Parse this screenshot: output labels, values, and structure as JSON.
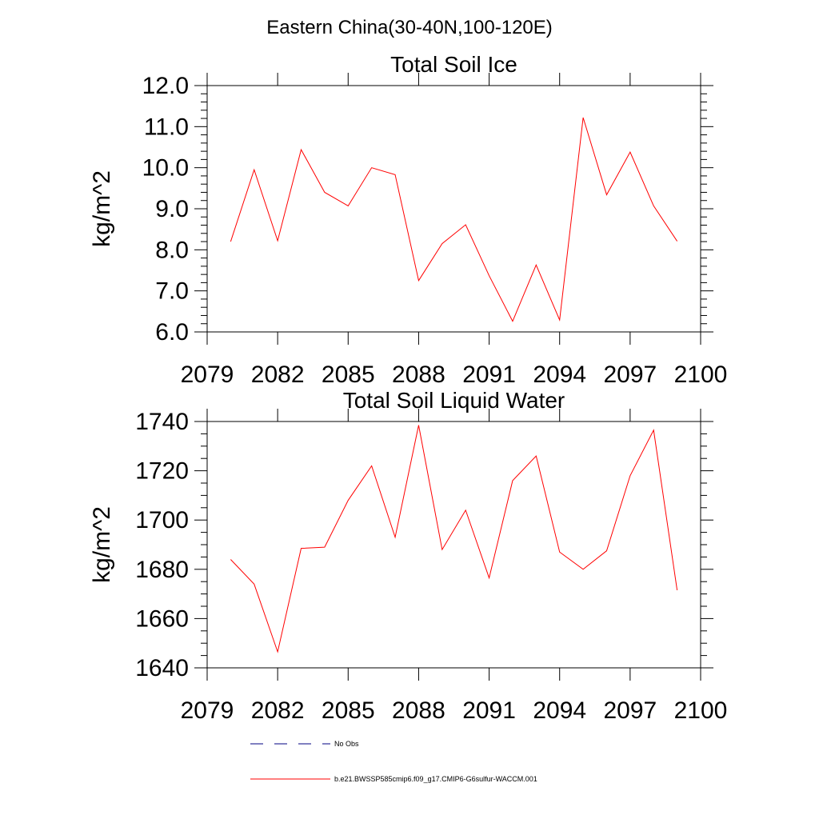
{
  "figure": {
    "title": "Eastern China(30-40N,100-120E)"
  },
  "chart_data": [
    {
      "type": "line",
      "title": "Total Soil Ice",
      "xlabel": "",
      "ylabel": "kg/m^2",
      "xlim": [
        2079,
        2100
      ],
      "ylim": [
        6.0,
        12.0
      ],
      "xticks": [
        2079,
        2082,
        2085,
        2088,
        2091,
        2094,
        2097,
        2100
      ],
      "xtick_labels": [
        "2079",
        "2082",
        "2085",
        "2088",
        "2091",
        "2094",
        "2097",
        "2100"
      ],
      "yticks": [
        6,
        7,
        8,
        9,
        10,
        11,
        12
      ],
      "ytick_labels": [
        "6.0",
        "7.0",
        "8.0",
        "9.0",
        "10.0",
        "11.0",
        "12.0"
      ],
      "grid": false,
      "x": [
        2080,
        2081,
        2082,
        2083,
        2084,
        2085,
        2086,
        2087,
        2088,
        2089,
        2090,
        2091,
        2092,
        2093,
        2094,
        2095,
        2096,
        2097,
        2098,
        2099
      ],
      "series": [
        {
          "name": "b.e21.BWSSP585cmip6.f09_g17.CMIP6-G6sulfur-WACCM.001",
          "color": "#ff0000",
          "values": [
            8.2,
            9.95,
            8.22,
            10.44,
            9.4,
            9.07,
            10.0,
            9.83,
            7.25,
            8.15,
            8.61,
            7.37,
            6.26,
            7.63,
            6.29,
            11.22,
            9.34,
            10.38,
            9.07,
            8.21
          ]
        }
      ]
    },
    {
      "type": "line",
      "title": "Total Soil Liquid Water",
      "xlabel": "",
      "ylabel": "kg/m^2",
      "xlim": [
        2079,
        2100
      ],
      "ylim": [
        1640,
        1740
      ],
      "xticks": [
        2079,
        2082,
        2085,
        2088,
        2091,
        2094,
        2097,
        2100
      ],
      "xtick_labels": [
        "2079",
        "2082",
        "2085",
        "2088",
        "2091",
        "2094",
        "2097",
        "2100"
      ],
      "yticks": [
        1640,
        1660,
        1680,
        1700,
        1720,
        1740
      ],
      "ytick_labels": [
        "1640",
        "1660",
        "1680",
        "1700",
        "1720",
        "1740"
      ],
      "grid": false,
      "x": [
        2080,
        2081,
        2082,
        2083,
        2084,
        2085,
        2086,
        2087,
        2088,
        2089,
        2090,
        2091,
        2092,
        2093,
        2094,
        2095,
        2096,
        2097,
        2098,
        2099
      ],
      "series": [
        {
          "name": "b.e21.BWSSP585cmip6.f09_g17.CMIP6-G6sulfur-WACCM.001",
          "color": "#ff0000",
          "values": [
            1684,
            1674,
            1646.5,
            1688.5,
            1689,
            1708,
            1722,
            1693,
            1738.5,
            1688,
            1704,
            1676.5,
            1716,
            1726,
            1687,
            1680,
            1687.5,
            1718,
            1736.5,
            1671.5
          ]
        }
      ]
    }
  ],
  "legend": {
    "placement": "bottom-center",
    "items": [
      {
        "label": "No Obs",
        "color": "#000080",
        "dash": "dashed"
      },
      {
        "label": "b.e21.BWSSP585cmip6.f09_g17.CMIP6-G6sulfur-WACCM.001",
        "color": "#ff0000",
        "dash": "solid"
      }
    ]
  }
}
